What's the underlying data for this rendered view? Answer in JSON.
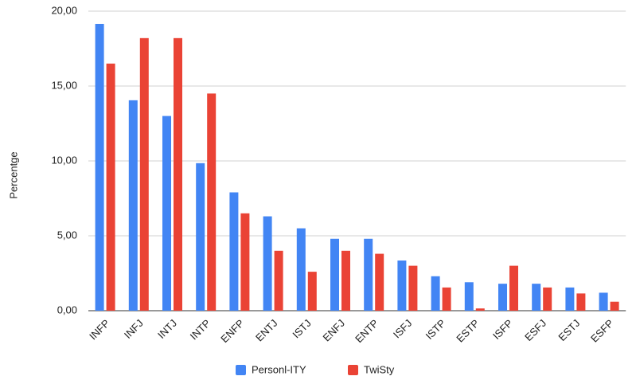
{
  "chart_data": {
    "type": "bar",
    "y_label": "Percentge",
    "categories": [
      "INFP",
      "INFJ",
      "INTJ",
      "INTP",
      "ENFP",
      "ENTJ",
      "ISTJ",
      "ENFJ",
      "ENTP",
      "ISFJ",
      "ISTP",
      "ESTP",
      "ISFP",
      "ESFJ",
      "ESTJ",
      "ESFP"
    ],
    "series": [
      {
        "name": "Personl-ITY",
        "color": "#4285f4",
        "values": [
          19.15,
          14.05,
          13.0,
          9.85,
          7.9,
          6.3,
          5.5,
          4.8,
          4.8,
          3.35,
          2.3,
          1.9,
          1.8,
          1.8,
          1.55,
          1.2
        ]
      },
      {
        "name": "TwiSty",
        "color": "#ea4335",
        "values": [
          16.5,
          18.2,
          18.2,
          14.5,
          6.5,
          4.0,
          2.6,
          4.0,
          3.8,
          3.0,
          1.55,
          0.15,
          3.0,
          1.55,
          1.15,
          0.6
        ]
      }
    ],
    "ylim": [
      0,
      20
    ],
    "yticks": [
      {
        "value": 0,
        "label": "0,00"
      },
      {
        "value": 5,
        "label": "5,00"
      },
      {
        "value": 10,
        "label": "10,00"
      },
      {
        "value": 15,
        "label": "15,00"
      },
      {
        "value": 20,
        "label": "20,00"
      }
    ],
    "grid": true,
    "legend": "bottom"
  }
}
